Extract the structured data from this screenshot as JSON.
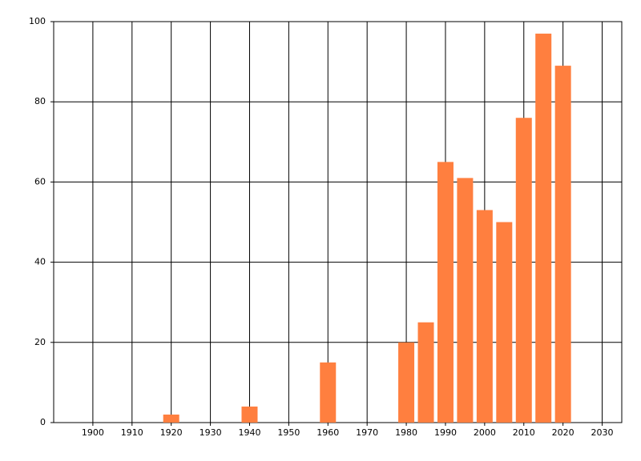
{
  "chart_data": {
    "type": "bar",
    "x": [
      1920,
      1940,
      1960,
      1980,
      1985,
      1990,
      1995,
      2000,
      2005,
      2010,
      2015,
      2020
    ],
    "values": [
      2,
      4,
      15,
      20,
      25,
      65,
      61,
      53,
      50,
      76,
      97,
      89
    ],
    "color": "#ff7f3f",
    "xlim": [
      1890,
      2035
    ],
    "xticks": [
      1900,
      1910,
      1920,
      1930,
      1940,
      1950,
      1960,
      1970,
      1980,
      1990,
      2000,
      2010,
      2020,
      2030
    ],
    "ylim": [
      0,
      100
    ],
    "yticks": [
      0,
      20,
      40,
      60,
      80,
      100
    ],
    "grid": true
  }
}
